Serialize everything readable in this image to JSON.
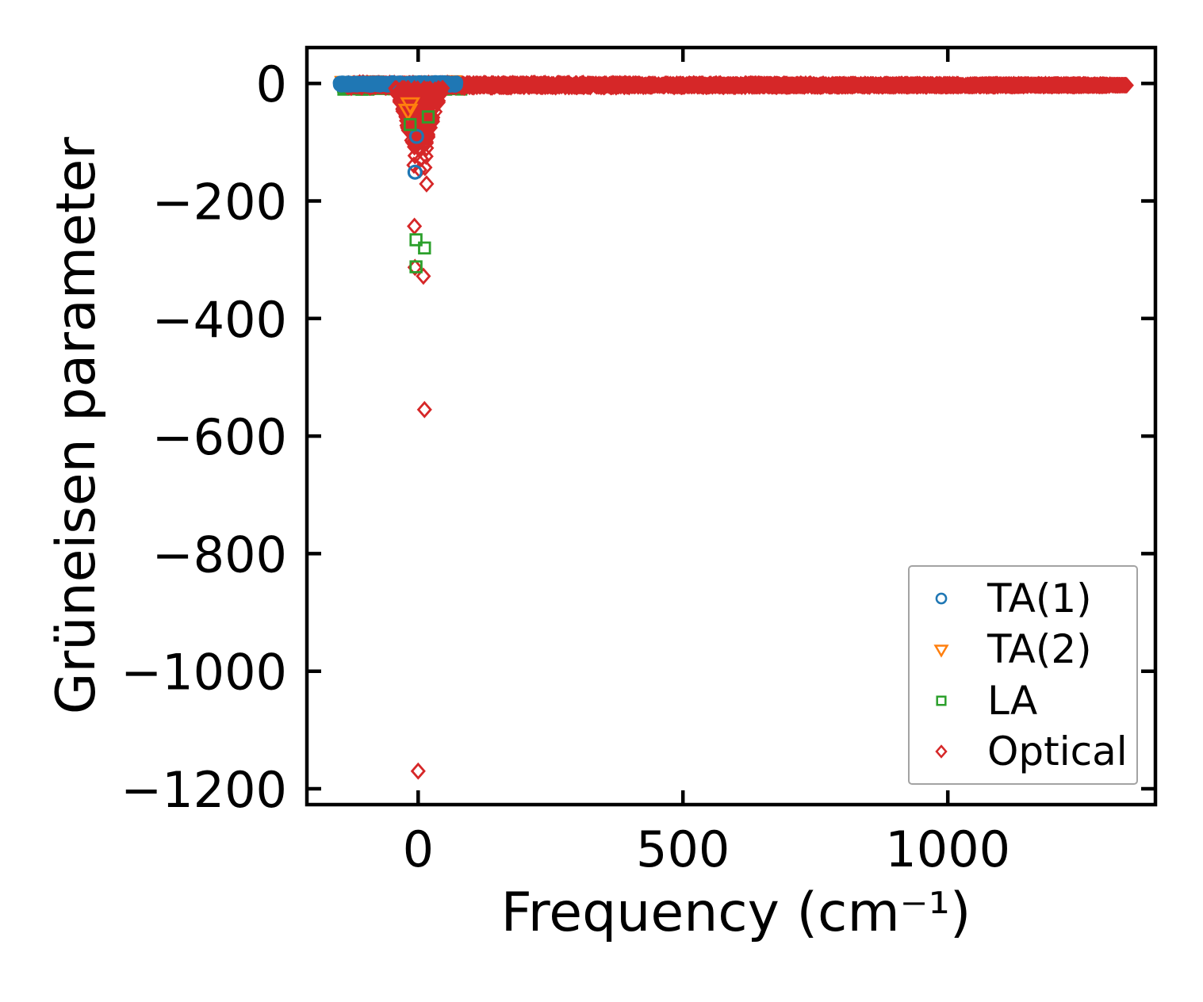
{
  "figure": {
    "background": "#ffffff",
    "text_color": "#000000"
  },
  "chart_data": {
    "type": "scatter",
    "title": "",
    "xlabel": "Frequency (cm⁻¹)",
    "ylabel": "Grüneisen parameter",
    "xlim": [
      -210,
      1392
    ],
    "ylim": [
      -1227,
      61
    ],
    "grid": false,
    "tick_direction": "in",
    "xticks": [
      {
        "v": 0,
        "label": "0"
      },
      {
        "v": 500,
        "label": "500"
      },
      {
        "v": 1000,
        "label": "1000"
      }
    ],
    "yticks": [
      {
        "v": 0,
        "label": "0"
      },
      {
        "v": -200,
        "label": "−200"
      },
      {
        "v": -400,
        "label": "−400"
      },
      {
        "v": -600,
        "label": "−600"
      },
      {
        "v": -800,
        "label": "−800"
      },
      {
        "v": -1000,
        "label": "−1000"
      },
      {
        "v": -1200,
        "label": "−1200"
      }
    ],
    "legend": {
      "position": "lower right",
      "border_color": "#a3a3a3"
    },
    "series": [
      {
        "name": "TA(1)",
        "marker": "circle",
        "color": "#1f77b4",
        "band": {
          "x": [
            -148,
            72
          ],
          "center": -1,
          "half": 3,
          "n": 650
        },
        "outliers": [
          [
            -3,
            -90
          ],
          [
            -6,
            -151
          ]
        ]
      },
      {
        "name": "TA(2)",
        "marker": "triangle-down",
        "color": "#ff7f0e",
        "band": {
          "x": [
            -142,
            70
          ],
          "center": 0,
          "half": 5,
          "n": 380
        },
        "outliers": [
          [
            -15,
            -34
          ],
          [
            -19,
            -45
          ]
        ]
      },
      {
        "name": "LA",
        "marker": "square",
        "color": "#2ca02c",
        "band": {
          "x": [
            -142,
            82
          ],
          "center": -5,
          "half": 6,
          "n": 380
        },
        "outliers": [
          [
            19,
            -57
          ],
          [
            -15,
            -70
          ],
          [
            -4,
            -266
          ],
          [
            12,
            -280
          ],
          [
            -4,
            -312
          ]
        ]
      },
      {
        "name": "Optical",
        "marker": "diamond",
        "color": "#d62728",
        "band": {
          "x": [
            -135,
            1338
          ],
          "center": -3,
          "half_start": 5,
          "half_end": 2,
          "tip": 45,
          "n": 3300
        },
        "funnel": {
          "x_center": 2,
          "width": 46,
          "depth": [
            -8,
            -105
          ],
          "n": 300,
          "gap": [
            -0.5,
            8.5
          ]
        },
        "outliers": [
          [
            -7,
            -108
          ],
          [
            3,
            -113
          ],
          [
            16,
            -110
          ],
          [
            -6,
            -123
          ],
          [
            6,
            -128
          ],
          [
            15,
            -124
          ],
          [
            -8,
            -139
          ],
          [
            3,
            -147
          ],
          [
            13,
            -143
          ],
          [
            16,
            -171
          ],
          [
            -7,
            -243
          ],
          [
            -6,
            -313
          ],
          [
            10,
            -328
          ],
          [
            12,
            -555
          ],
          [
            0,
            -1170
          ]
        ]
      }
    ]
  }
}
